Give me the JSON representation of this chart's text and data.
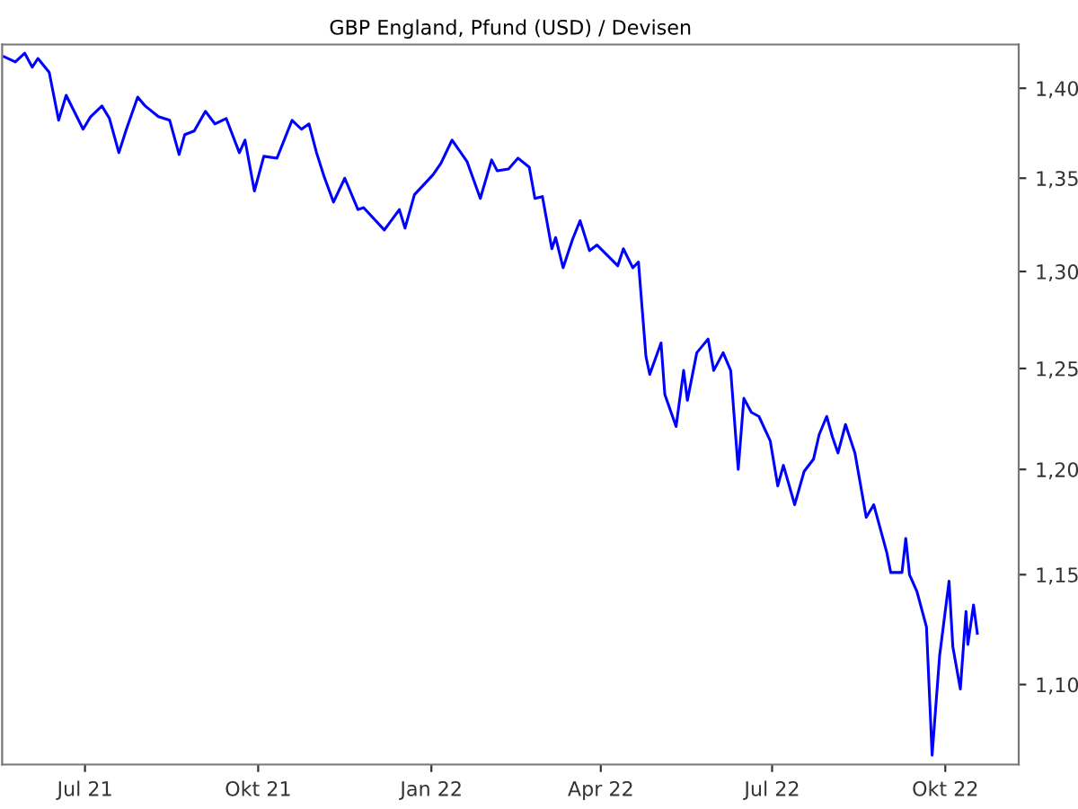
{
  "chart_data": {
    "type": "line",
    "title": "GBP England, Pfund (USD) / Devisen",
    "x": [
      "2021-05-19",
      "2021-05-25",
      "2021-05-30",
      "2021-06-03",
      "2021-06-06",
      "2021-06-09",
      "2021-06-12",
      "2021-06-17",
      "2021-06-21",
      "2021-06-30",
      "2021-07-04",
      "2021-07-10",
      "2021-07-14",
      "2021-07-19",
      "2021-07-23",
      "2021-07-29",
      "2021-08-02",
      "2021-08-09",
      "2021-08-15",
      "2021-08-20",
      "2021-08-23",
      "2021-08-28",
      "2021-09-03",
      "2021-09-08",
      "2021-09-14",
      "2021-09-21",
      "2021-09-24",
      "2021-09-29",
      "2021-10-04",
      "2021-10-11",
      "2021-10-19",
      "2021-10-24",
      "2021-10-28",
      "2021-11-01",
      "2021-11-05",
      "2021-11-10",
      "2021-11-16",
      "2021-11-23",
      "2021-11-26",
      "2021-12-07",
      "2021-12-15",
      "2021-12-18",
      "2021-12-23",
      "2022-01-02",
      "2022-01-06",
      "2022-01-12",
      "2022-01-20",
      "2022-01-27",
      "2022-02-02",
      "2022-02-05",
      "2022-02-11",
      "2022-02-16",
      "2022-02-22",
      "2022-02-25",
      "2022-03-01",
      "2022-03-06",
      "2022-03-08",
      "2022-03-12",
      "2022-03-17",
      "2022-03-21",
      "2022-03-26",
      "2022-03-30",
      "2022-04-05",
      "2022-04-10",
      "2022-04-13",
      "2022-04-18",
      "2022-04-21",
      "2022-04-25",
      "2022-04-27",
      "2022-05-03",
      "2022-05-05",
      "2022-05-11",
      "2022-05-15",
      "2022-05-17",
      "2022-05-22",
      "2022-05-28",
      "2022-05-31",
      "2022-06-05",
      "2022-06-09",
      "2022-06-13",
      "2022-06-16",
      "2022-06-20",
      "2022-06-24",
      "2022-06-30",
      "2022-07-04",
      "2022-07-07",
      "2022-07-13",
      "2022-07-18",
      "2022-07-23",
      "2022-07-26",
      "2022-07-30",
      "2022-08-02",
      "2022-08-05",
      "2022-08-09",
      "2022-08-14",
      "2022-08-20",
      "2022-08-24",
      "2022-08-31",
      "2022-09-02",
      "2022-09-08",
      "2022-09-10",
      "2022-09-12",
      "2022-09-16",
      "2022-09-21",
      "2022-09-24",
      "2022-09-28",
      "2022-10-03",
      "2022-10-05",
      "2022-10-09",
      "2022-10-12",
      "2022-10-13",
      "2022-10-16",
      "2022-10-18"
    ],
    "series": [
      {
        "color": "#0000ff",
        "values": [
          1.418,
          1.415,
          1.42,
          1.412,
          1.417,
          1.413,
          1.409,
          1.382,
          1.396,
          1.377,
          1.384,
          1.39,
          1.383,
          1.364,
          1.377,
          1.395,
          1.39,
          1.384,
          1.382,
          1.363,
          1.374,
          1.376,
          1.387,
          1.38,
          1.383,
          1.364,
          1.371,
          1.343,
          1.362,
          1.361,
          1.382,
          1.377,
          1.38,
          1.364,
          1.351,
          1.337,
          1.35,
          1.333,
          1.334,
          1.322,
          1.333,
          1.323,
          1.341,
          1.352,
          1.358,
          1.371,
          1.359,
          1.339,
          1.36,
          1.354,
          1.355,
          1.361,
          1.356,
          1.339,
          1.34,
          1.312,
          1.318,
          1.302,
          1.317,
          1.327,
          1.311,
          1.314,
          1.308,
          1.303,
          1.312,
          1.302,
          1.305,
          1.256,
          1.247,
          1.263,
          1.237,
          1.221,
          1.249,
          1.234,
          1.258,
          1.265,
          1.249,
          1.258,
          1.249,
          1.2,
          1.235,
          1.228,
          1.226,
          1.214,
          1.192,
          1.202,
          1.183,
          1.199,
          1.205,
          1.217,
          1.226,
          1.216,
          1.208,
          1.222,
          1.208,
          1.177,
          1.183,
          1.16,
          1.151,
          1.151,
          1.167,
          1.15,
          1.142,
          1.126,
          1.069,
          1.113,
          1.147,
          1.117,
          1.098,
          1.133,
          1.118,
          1.136,
          1.123
        ]
      }
    ],
    "xlim": [
      "2021-05-18",
      "2022-11-09"
    ],
    "xticks": [
      {
        "value": "2021-07-01",
        "label": "Jul 21"
      },
      {
        "value": "2021-10-01",
        "label": "Okt 21"
      },
      {
        "value": "2022-01-01",
        "label": "Jan 22"
      },
      {
        "value": "2022-04-01",
        "label": "Apr 22"
      },
      {
        "value": "2022-07-01",
        "label": "Jul 22"
      },
      {
        "value": "2022-10-01",
        "label": "Okt 22"
      }
    ],
    "ylim": [
      1.065,
      1.425
    ],
    "log": "y",
    "yticks": [
      {
        "value": 1.1,
        "label": "1,10"
      },
      {
        "value": 1.15,
        "label": "1,15"
      },
      {
        "value": 1.2,
        "label": "1,20"
      },
      {
        "value": 1.25,
        "label": "1,25"
      },
      {
        "value": 1.3,
        "label": "1,30"
      },
      {
        "value": 1.35,
        "label": "1,35"
      },
      {
        "value": 1.4,
        "label": "1,40"
      }
    ],
    "grid": false,
    "legend": false
  }
}
